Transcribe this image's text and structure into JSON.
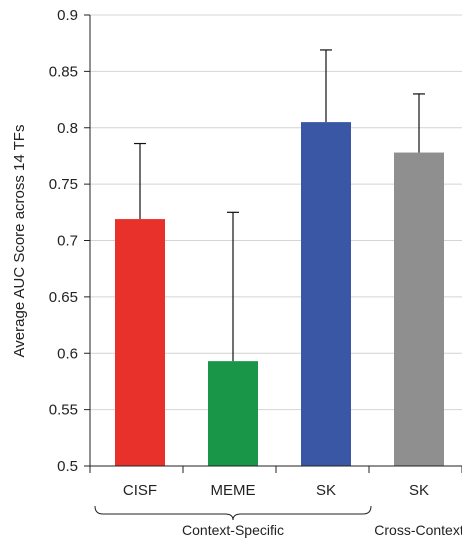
{
  "chart_data": {
    "type": "bar",
    "ylabel": "Average AUC Score across 14 TFs",
    "ylim": [
      0.5,
      0.9
    ],
    "yticks": [
      0.5,
      0.55,
      0.6,
      0.65,
      0.7,
      0.75,
      0.8,
      0.85,
      0.9
    ],
    "ytick_labels": [
      "0.5",
      "0.55",
      "0.6",
      "0.65",
      "0.7",
      "0.75",
      "0.8",
      "0.85",
      "0.9"
    ],
    "grid": true,
    "categories": [
      "CISF",
      "MEME",
      "SK",
      "SK"
    ],
    "values": [
      0.719,
      0.593,
      0.805,
      0.778
    ],
    "error_upper": [
      0.067,
      0.132,
      0.064,
      0.052
    ],
    "colors": [
      "#e8312a",
      "#1a9649",
      "#3a57a6",
      "#8f8f8f"
    ],
    "groups": [
      {
        "label": "Context-Specific",
        "categories": [
          0,
          1,
          2
        ]
      },
      {
        "label": "Cross-Context",
        "categories": [
          3
        ]
      }
    ]
  }
}
